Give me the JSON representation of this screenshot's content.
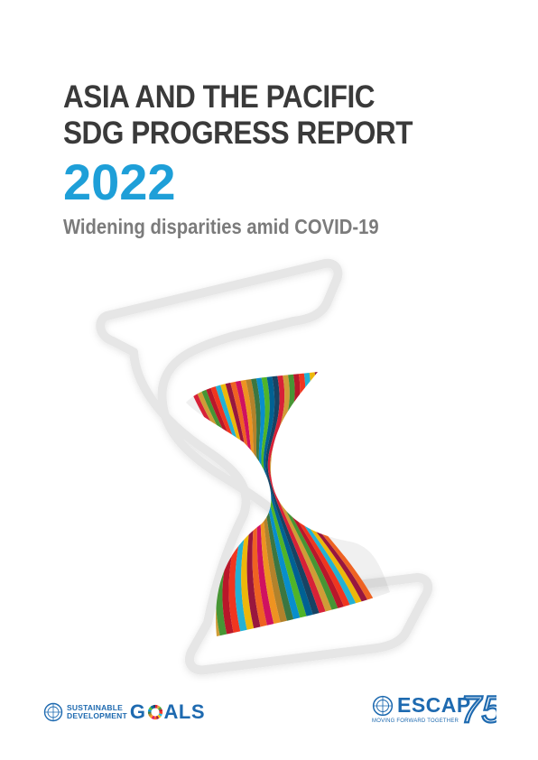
{
  "cover": {
    "title_line1": "ASIA AND THE PACIFIC",
    "title_line2": "SDG PROGRESS REPORT",
    "year": "2022",
    "subtitle": "Widening disparities amid COVID-19"
  },
  "footer": {
    "sdg_line1": "SUSTAINABLE",
    "sdg_line2": "DEVELOPMENT",
    "goals_g": "G",
    "goals_rest": "ALS",
    "escap_name": "ESCAP",
    "escap_tagline": "MOVING FORWARD TOGETHER",
    "escap_number": "75"
  },
  "colors": {
    "title": "#3a3a3a",
    "year": "#1e9fd8",
    "subtitle": "#7b7b7b",
    "un_blue": "#1e6ab0",
    "sdg_palette": [
      "#e5243b",
      "#dda63a",
      "#4c9f38",
      "#c5192d",
      "#ff3a21",
      "#26bde2",
      "#fcc30b",
      "#a21942",
      "#fd6925",
      "#dd1367",
      "#fd9d24",
      "#bf8b2e",
      "#3f7e44",
      "#0a97d9",
      "#56c02b",
      "#00689d",
      "#19486a"
    ]
  },
  "icons": {
    "un_emblem": "un-emblem-icon",
    "hourglass": "hourglass-icon",
    "sdg_wheel": "sdg-wheel-icon"
  }
}
